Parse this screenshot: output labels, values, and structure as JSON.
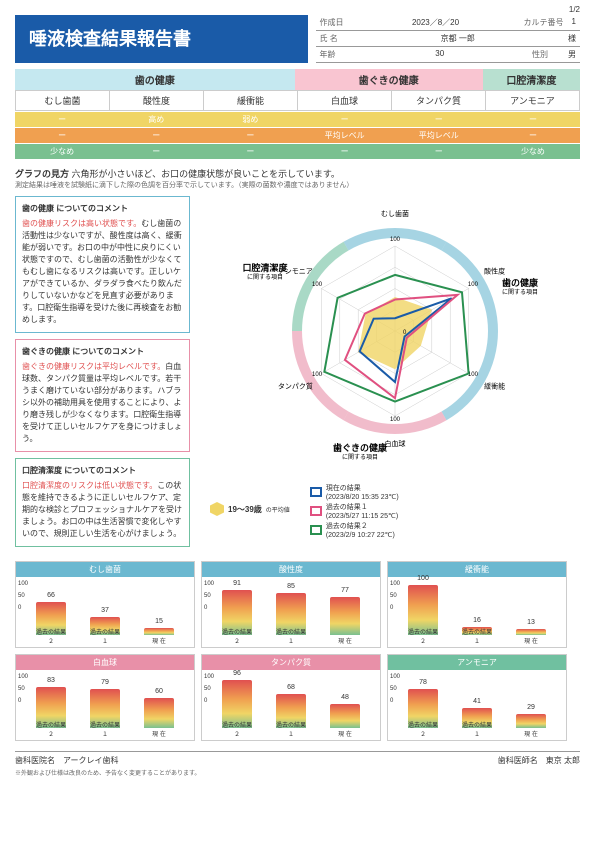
{
  "page": "1/2",
  "title": "唾液検査結果報告書",
  "meta": {
    "date_lbl": "作成日",
    "date": "2023／8／20",
    "karte_lbl": "カルテ番号",
    "karte": "1",
    "name_lbl": "氏 名",
    "name": "京都 一郎",
    "honor": "様",
    "age_lbl": "年齢",
    "age": "30",
    "sex_lbl": "性別",
    "sex": "男"
  },
  "categories": [
    {
      "name": "歯の健康",
      "color": "#c5e8f0",
      "items": [
        "むし歯菌",
        "酸性度",
        "緩衝能"
      ]
    },
    {
      "name": "歯ぐきの健康",
      "color": "#f9c5d1",
      "items": [
        "白血球",
        "タンパク質"
      ]
    },
    {
      "name": "口腔清潔度",
      "color": "#b8e0d0",
      "items": [
        "アンモニア"
      ]
    }
  ],
  "levels": [
    [
      "ー",
      "高め",
      "弱め",
      "ー",
      "ー",
      "ー"
    ],
    [
      "ー",
      "ー",
      "ー",
      "平均レベル",
      "平均レベル",
      "ー"
    ],
    [
      "少なめ",
      "ー",
      "ー",
      "ー",
      "ー",
      "少なめ"
    ]
  ],
  "level_colors": [
    "#f0d565",
    "#f0a050",
    "#7ac090"
  ],
  "graph_note_t": "グラフの見方",
  "graph_note": "六角形が小さいほど、お口の健康状態が良いことを示しています。",
  "graph_sub": "測定結果は唾液を試験紙に滴下した際の色調を百分率で示しています。（実際の菌数や濃度ではありません）",
  "comments": [
    {
      "cat": "歯の健康",
      "cls": "c1",
      "hl": "歯の健康リスクは高い状態です。",
      "body": "むし歯菌の活動性は少ないですが、酸性度は高く、緩衝能が弱いです。お口の中が中性に戻りにくい状態ですので、むし歯菌の活動性が少なくてもむし歯になるリスクは高いです。正しいケアができているか、ダラダラ食べたり飲んだりしていないかなどを見直す必要があります。口腔衛生指導を受けた後に再検査をお勧めします。"
    },
    {
      "cat": "歯ぐきの健康",
      "cls": "c2",
      "hl": "歯ぐきの健康リスクは平均レベルです。",
      "body": "白血球数、タンパク質量は平均レベルです。若干うまく磨けていない部分があります。ハブラシ以外の補助用具を使用することにより、より磨き残しが少なくなります。口腔衛生指導を受けて正しいセルフケアを身につけましょう。"
    },
    {
      "cat": "口腔清潔度",
      "cls": "c3",
      "hl": "口腔清潔度のリスクは低い状態です。",
      "body": "この状態を維持できるように正しいセルフケア、定期的な検診とプロフェッショナルケアを受けましょう。お口の中は生活習慣で変化しやすいので、規則正しい生活を心がけましょう。"
    }
  ],
  "radar": {
    "axes": [
      "むし歯菌",
      "酸性度",
      "緩衝能",
      "白血球",
      "タンパク質",
      "アンモニア"
    ],
    "axis_max": 100,
    "arc_colors": [
      "#6bb8d0",
      "#6bb8d0",
      "#6bb8d0",
      "#e890a8",
      "#e890a8",
      "#70c0a0"
    ],
    "series": [
      {
        "name": "現在の結果",
        "date": "(2023/8/20 15:35 23℃)",
        "color": "#1a5ba8",
        "vals": [
          15,
          77,
          13,
          60,
          48,
          29
        ]
      },
      {
        "name": "過去の結果１",
        "date": "(2023/5/27 11:15 25℃)",
        "color": "#e05080",
        "vals": [
          37,
          85,
          16,
          79,
          68,
          41
        ]
      },
      {
        "name": "過去の結果２",
        "date": "(2023/2/9 10:27 22℃)",
        "color": "#2a9050",
        "vals": [
          66,
          91,
          100,
          83,
          96,
          78
        ]
      }
    ],
    "avg_label": "19～39歳",
    "avg_suffix": "の平均値",
    "avg_vals": [
      40,
      50,
      35,
      45,
      50,
      40
    ]
  },
  "mini": [
    {
      "t": "むし歯菌",
      "c": "#6bb8d0",
      "v": [
        66,
        37,
        15
      ]
    },
    {
      "t": "酸性度",
      "c": "#6bb8d0",
      "v": [
        91,
        85,
        77
      ]
    },
    {
      "t": "緩衝能",
      "c": "#6bb8d0",
      "v": [
        100,
        16,
        13
      ]
    },
    {
      "t": "白血球",
      "c": "#e890a8",
      "v": [
        83,
        79,
        60
      ]
    },
    {
      "t": "タンパク質",
      "c": "#e890a8",
      "v": [
        96,
        68,
        48
      ]
    },
    {
      "t": "アンモニア",
      "c": "#70c0a0",
      "v": [
        78,
        41,
        29
      ]
    }
  ],
  "mini_x": [
    "過去の結果２",
    "過去の結果１",
    "現 在"
  ],
  "footer": {
    "clinic_lbl": "歯科医院名",
    "clinic": "アークレイ歯科",
    "doctor_lbl": "歯科医師名",
    "doctor": "東京 太郎"
  },
  "disclaimer": "※外観および仕様は改良のため、予告なく変更することがあります。"
}
